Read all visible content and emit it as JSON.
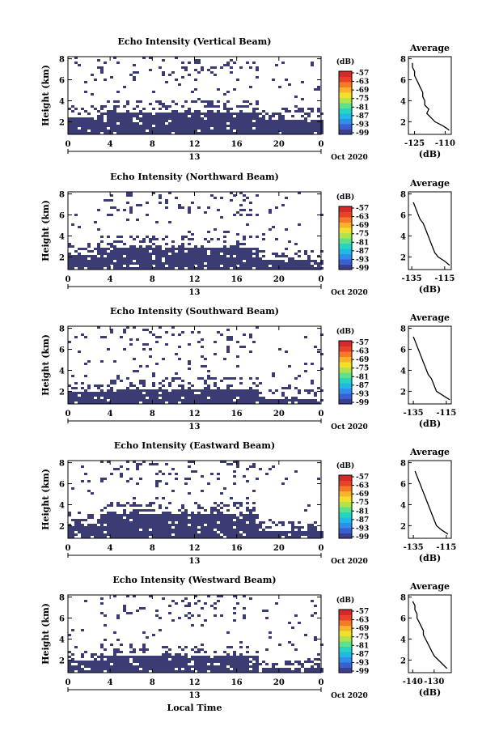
{
  "figure": {
    "xaxis_label": "Local Time",
    "ylabel_panels": "Height (km)",
    "date_label": "Oct 2020",
    "date_tick": "13",
    "colorbar_unit": "(dB)",
    "colorbar_ticks": [
      "-57",
      "-63",
      "-69",
      "-75",
      "-81",
      "-87",
      "-93",
      "-99"
    ],
    "colorbar_colors": [
      "#3b3f8f",
      "#3a5fcf",
      "#2f8ee8",
      "#22b8e6",
      "#27d4c0",
      "#5fe08a",
      "#b2e34c",
      "#f0e02c",
      "#fbb22b",
      "#f57a28",
      "#e8432a",
      "#d32a2a"
    ],
    "data_color": "#3b3c74",
    "avg_title": "Average",
    "avg_xlabel": "(dB)"
  },
  "chart_data": [
    {
      "type": "heatmap",
      "title": "Echo Intensity (Vertical Beam)",
      "xlabel": "Local Time",
      "ylabel": "Height (km)",
      "x_ticks": [
        "0",
        "4",
        "8",
        "12",
        "16",
        "20",
        "0"
      ],
      "y_ticks": [
        "2",
        "4",
        "6",
        "8"
      ],
      "xlim": [
        0,
        24
      ],
      "ylim": [
        0.8,
        8.2
      ],
      "dense_layers": [
        {
          "from_hour": 0,
          "to_hour": 3,
          "bottom_km": 1.0,
          "top_km": 2.6
        },
        {
          "from_hour": 3,
          "to_hour": 18,
          "bottom_km": 1.0,
          "top_km": 3.1
        },
        {
          "from_hour": 18,
          "to_hour": 24,
          "bottom_km": 1.0,
          "top_km": 2.3
        }
      ],
      "average_profile": {
        "title": "Average",
        "xlabel": "(dB)",
        "x_ticks": [
          "-125",
          "-110"
        ],
        "xlim": [
          -128,
          -107
        ],
        "heights_km": [
          1.2,
          1.6,
          2.0,
          2.4,
          2.8,
          3.2,
          3.6,
          4.0,
          4.4,
          4.8,
          5.2,
          5.6,
          6.0,
          6.4,
          6.8,
          7.2,
          7.6
        ],
        "values": [
          -108,
          -111,
          -115,
          -117,
          -119,
          -118,
          -120,
          -120,
          -121,
          -121,
          -122,
          -123,
          -124,
          -125,
          -125,
          -126,
          -126
        ]
      }
    },
    {
      "type": "heatmap",
      "title": "Echo Intensity (Northward Beam)",
      "xlabel": "Local Time",
      "ylabel": "Height (km)",
      "x_ticks": [
        "0",
        "4",
        "8",
        "12",
        "16",
        "20",
        "0"
      ],
      "y_ticks": [
        "2",
        "4",
        "6",
        "8"
      ],
      "xlim": [
        0,
        24
      ],
      "ylim": [
        0.8,
        8.2
      ],
      "dense_layers": [
        {
          "from_hour": 0,
          "to_hour": 3,
          "bottom_km": 1.0,
          "top_km": 2.3
        },
        {
          "from_hour": 3,
          "to_hour": 18,
          "bottom_km": 1.0,
          "top_km": 3.1
        },
        {
          "from_hour": 18,
          "to_hour": 24,
          "bottom_km": 1.0,
          "top_km": 1.8
        }
      ],
      "average_profile": {
        "title": "Average",
        "xlabel": "(dB)",
        "x_ticks": [
          "-135",
          "-115"
        ],
        "xlim": [
          -137,
          -111
        ],
        "heights_km": [
          1.2,
          1.6,
          2.0,
          2.4,
          2.8,
          3.2,
          3.6,
          4.0,
          4.4,
          4.8,
          5.2,
          5.6,
          6.0,
          6.4,
          6.8,
          7.2
        ],
        "values": [
          -112,
          -115,
          -119,
          -121,
          -122,
          -123,
          -124,
          -125,
          -126,
          -127,
          -128,
          -130,
          -131,
          -132,
          -133,
          -134
        ]
      }
    },
    {
      "type": "heatmap",
      "title": "Echo Intensity (Southward Beam)",
      "xlabel": "Local Time",
      "ylabel": "Height (km)",
      "x_ticks": [
        "0",
        "4",
        "8",
        "12",
        "16",
        "20",
        "0"
      ],
      "y_ticks": [
        "2",
        "4",
        "6",
        "8"
      ],
      "xlim": [
        0,
        24
      ],
      "ylim": [
        0.8,
        8.2
      ],
      "dense_layers": [
        {
          "from_hour": 0,
          "to_hour": 3,
          "bottom_km": 1.0,
          "top_km": 2.0
        },
        {
          "from_hour": 3,
          "to_hour": 18,
          "bottom_km": 1.0,
          "top_km": 2.4
        },
        {
          "from_hour": 18,
          "to_hour": 24,
          "bottom_km": 1.0,
          "top_km": 1.4
        }
      ],
      "average_profile": {
        "title": "Average",
        "xlabel": "(dB)",
        "x_ticks": [
          "-135",
          "-115"
        ],
        "xlim": [
          -138,
          -112
        ],
        "heights_km": [
          1.2,
          1.6,
          2.0,
          2.4,
          2.8,
          3.2,
          3.6,
          4.0,
          4.4,
          4.8,
          5.2,
          5.6,
          6.0,
          6.4,
          6.8,
          7.2
        ],
        "values": [
          -113,
          -117,
          -121,
          -122,
          -123,
          -124,
          -126,
          -127,
          -128,
          -129,
          -130,
          -131,
          -132,
          -133,
          -134,
          -135
        ]
      }
    },
    {
      "type": "heatmap",
      "title": "Echo Intensity (Eastward Beam)",
      "xlabel": "Local Time",
      "ylabel": "Height (km)",
      "x_ticks": [
        "0",
        "4",
        "8",
        "12",
        "16",
        "20",
        "0"
      ],
      "y_ticks": [
        "2",
        "4",
        "6",
        "8"
      ],
      "xlim": [
        0,
        24
      ],
      "ylim": [
        0.8,
        8.2
      ],
      "dense_layers": [
        {
          "from_hour": 0,
          "to_hour": 3,
          "bottom_km": 1.0,
          "top_km": 2.4
        },
        {
          "from_hour": 3,
          "to_hour": 18,
          "bottom_km": 1.0,
          "top_km": 3.2
        },
        {
          "from_hour": 18,
          "to_hour": 24,
          "bottom_km": 1.0,
          "top_km": 1.6
        }
      ],
      "average_profile": {
        "title": "Average",
        "xlabel": "(dB)",
        "x_ticks": [
          "-135",
          "-115"
        ],
        "xlim": [
          -138,
          -112
        ],
        "heights_km": [
          1.2,
          1.6,
          2.0,
          2.4,
          2.8,
          3.2,
          3.6,
          4.0,
          4.4,
          4.8,
          5.2,
          5.6,
          6.0,
          6.4,
          6.8,
          7.2
        ],
        "values": [
          -114,
          -118,
          -121,
          -122,
          -123,
          -124,
          -125,
          -126,
          -127,
          -128,
          -129,
          -130,
          -131,
          -132,
          -133,
          -134
        ]
      }
    },
    {
      "type": "heatmap",
      "title": "Echo Intensity (Westward Beam)",
      "xlabel": "Local Time",
      "ylabel": "Height (km)",
      "x_ticks": [
        "0",
        "4",
        "8",
        "12",
        "16",
        "20",
        "0"
      ],
      "y_ticks": [
        "2",
        "4",
        "6",
        "8"
      ],
      "xlim": [
        0,
        24
      ],
      "ylim": [
        0.8,
        8.2
      ],
      "dense_layers": [
        {
          "from_hour": 0,
          "to_hour": 3,
          "bottom_km": 1.0,
          "top_km": 2.0
        },
        {
          "from_hour": 3,
          "to_hour": 18,
          "bottom_km": 1.0,
          "top_km": 2.6
        },
        {
          "from_hour": 18,
          "to_hour": 24,
          "bottom_km": 1.0,
          "top_km": 1.3
        }
      ],
      "average_profile": {
        "title": "Average",
        "xlabel": "(dB)",
        "x_ticks": [
          "-140",
          "-130"
        ],
        "xlim": [
          -142,
          -122
        ],
        "heights_km": [
          1.2,
          1.6,
          2.0,
          2.4,
          2.8,
          3.2,
          3.6,
          4.0,
          4.4,
          4.8,
          5.2,
          5.6,
          6.0,
          6.4,
          6.8,
          7.2,
          7.6
        ],
        "values": [
          -124,
          -126,
          -128,
          -130,
          -131,
          -132,
          -133,
          -134,
          -135,
          -135,
          -136,
          -137,
          -138,
          -138,
          -139,
          -139,
          -140
        ]
      }
    }
  ]
}
